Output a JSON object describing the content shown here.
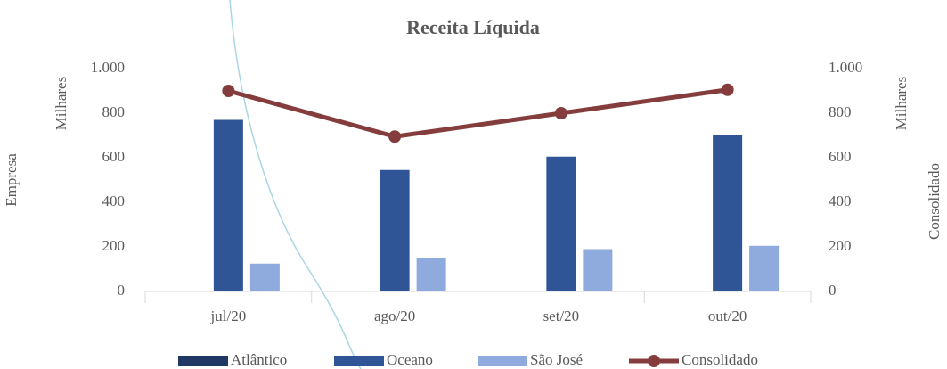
{
  "chart_data": {
    "type": "bar",
    "title": "Receita Líquida",
    "y_label": "Empresa",
    "y_units_label": "Milhares",
    "y2_label": "Consolidado",
    "y2_units_label": "Milhares",
    "categories": [
      "jul/20",
      "ago/20",
      "set/20",
      "out/20"
    ],
    "series": [
      {
        "name": "Atlântico",
        "color": "#1f3864",
        "values": [
          0,
          0,
          0,
          0
        ]
      },
      {
        "name": "Oceano",
        "color": "#2f5597",
        "values": [
          770,
          545,
          605,
          700
        ]
      },
      {
        "name": "São José",
        "color": "#8faadc",
        "values": [
          125,
          148,
          190,
          205
        ]
      },
      {
        "name": "Consolidado",
        "color": "#843c3c",
        "type": "line",
        "axis": "y2",
        "values": [
          900,
          695,
          800,
          905
        ]
      }
    ],
    "ylim": [
      0,
      1000
    ],
    "yticks": [
      0,
      200,
      400,
      600,
      800,
      {
        "value": 1000,
        "label": "1.000"
      }
    ],
    "y2lim": [
      0,
      1000
    ],
    "y2ticks": [
      0,
      200,
      400,
      600,
      800,
      {
        "value": 1000,
        "label": "1.000"
      }
    ],
    "grid": false,
    "legend": "bottom"
  }
}
